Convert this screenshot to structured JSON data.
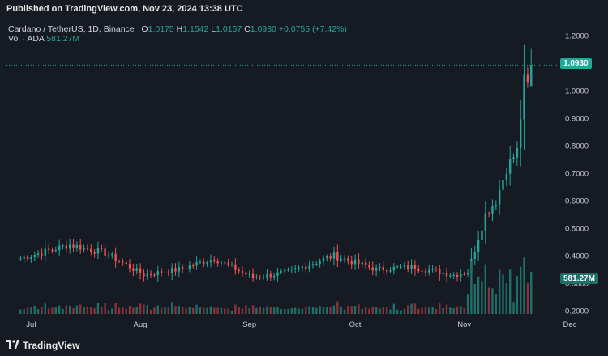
{
  "header": {
    "published": "Published on TradingView.com, Nov 23, 2024 13:38 UTC"
  },
  "legend": {
    "symbol": "Cardano / TetherUS, 1D, Binance",
    "o_label": "O",
    "o": "1.0175",
    "h_label": "H",
    "h": "1.1542",
    "l_label": "L",
    "l": "1.0157",
    "c_label": "C",
    "c": "1.0930",
    "change": "+0.0755 (+7.42%)",
    "vol_label": "Vol · ADA",
    "vol_value": "581.27M"
  },
  "price_axis": {
    "ticks": [
      "1.2000",
      "1.1000",
      "1.0000",
      "0.9000",
      "0.8000",
      "0.7000",
      "0.6000",
      "0.5000",
      "0.4000",
      "0.3000",
      "0.2000"
    ]
  },
  "time_axis": {
    "labels": [
      "Jul",
      "Aug",
      "Sep",
      "Oct",
      "Nov",
      "Dec"
    ]
  },
  "badges": {
    "last_price": "1.0930",
    "volume": "581.27M"
  },
  "colors": {
    "up": "#26a69a",
    "down": "#ef5350",
    "vol_up": "#1e6f68",
    "vol_down": "#8a3238"
  },
  "footer": {
    "brand": "TradingView",
    "logo_icon": "tradingview-logo-icon"
  },
  "chart_data": {
    "type": "candlestick",
    "title": "Cardano / TetherUS, 1D, Binance",
    "xlabel": "",
    "ylabel": "",
    "ylim": [
      0.2,
      1.2
    ],
    "x_range": [
      "2024-06-27",
      "2024-12-01"
    ],
    "grid": false,
    "key_points": [
      {
        "date": "2024-07-01",
        "close": 0.39
      },
      {
        "date": "2024-07-15",
        "close": 0.44
      },
      {
        "date": "2024-07-25",
        "close": 0.41
      },
      {
        "date": "2024-08-05",
        "close": 0.33
      },
      {
        "date": "2024-08-15",
        "close": 0.35
      },
      {
        "date": "2024-08-25",
        "close": 0.39
      },
      {
        "date": "2024-09-05",
        "close": 0.32
      },
      {
        "date": "2024-09-15",
        "close": 0.34
      },
      {
        "date": "2024-09-28",
        "close": 0.4
      },
      {
        "date": "2024-10-10",
        "close": 0.35
      },
      {
        "date": "2024-10-20",
        "close": 0.36
      },
      {
        "date": "2024-11-01",
        "close": 0.33
      },
      {
        "date": "2024-11-05",
        "close": 0.34
      },
      {
        "date": "2024-11-10",
        "close": 0.55
      },
      {
        "date": "2024-11-13",
        "close": 0.6
      },
      {
        "date": "2024-11-16",
        "close": 0.72
      },
      {
        "date": "2024-11-19",
        "close": 0.78
      },
      {
        "date": "2024-11-21",
        "close": 1.03
      },
      {
        "date": "2024-11-22",
        "close": 1.0175
      },
      {
        "date": "2024-11-23",
        "open": 1.0175,
        "high": 1.1542,
        "low": 1.0157,
        "close": 1.093
      }
    ],
    "last_volume": "581.27M"
  }
}
